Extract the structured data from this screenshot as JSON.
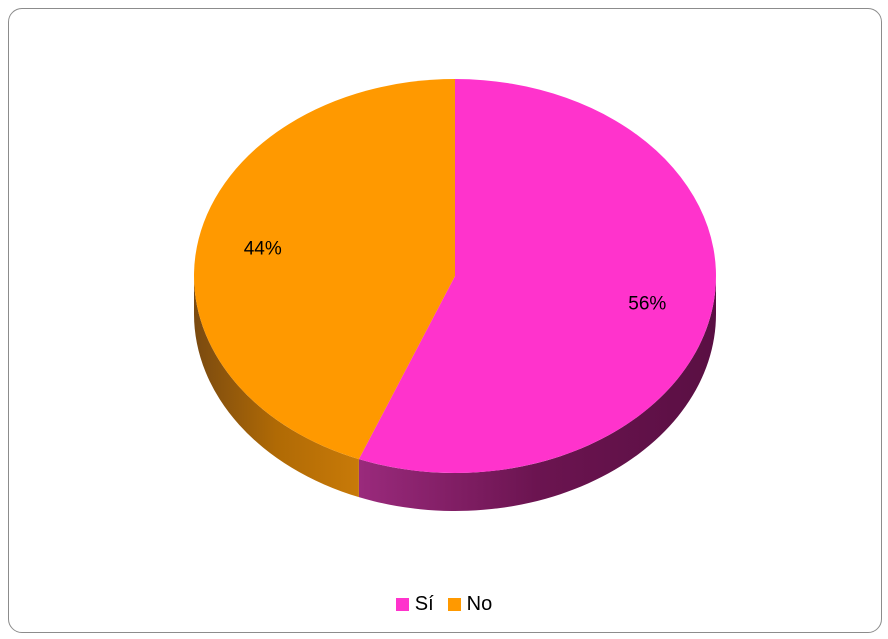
{
  "chart_data": {
    "type": "pie",
    "title": "",
    "categories": [
      "Sí",
      "No"
    ],
    "values": [
      56,
      44
    ],
    "data_labels": [
      "56%",
      "44%"
    ],
    "colors": [
      "#FF33CC",
      "#FF9900"
    ],
    "side_colors": [
      "#6B1450",
      "#A35F00"
    ],
    "three_d": true,
    "legend_position": "bottom"
  },
  "legend": {
    "items": [
      {
        "label": "Sí",
        "color": "#FF33CC"
      },
      {
        "label": "No",
        "color": "#FF9900"
      }
    ]
  }
}
